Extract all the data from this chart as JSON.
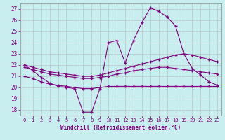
{
  "xlabel": "Windchill (Refroidissement éolien,°C)",
  "background_color": "#c8eef0",
  "grid_color": "#b0b0b0",
  "line_color": "#800080",
  "ylim": [
    17.5,
    27.5
  ],
  "xlim": [
    -0.5,
    23.5
  ],
  "yticks": [
    18,
    19,
    20,
    21,
    22,
    23,
    24,
    25,
    26,
    27
  ],
  "xticks": [
    0,
    1,
    2,
    3,
    4,
    5,
    6,
    7,
    8,
    9,
    10,
    11,
    12,
    13,
    14,
    15,
    16,
    17,
    18,
    19,
    20,
    21,
    22,
    23
  ],
  "hours": [
    0,
    1,
    2,
    3,
    4,
    5,
    6,
    7,
    8,
    9,
    10,
    11,
    12,
    13,
    14,
    15,
    16,
    17,
    18,
    19,
    20,
    21,
    22,
    23
  ],
  "line1": [
    22.0,
    21.5,
    20.9,
    20.4,
    20.1,
    20.0,
    19.9,
    17.8,
    17.8,
    19.9,
    24.0,
    24.2,
    22.2,
    24.2,
    25.8,
    27.1,
    26.8,
    26.3,
    25.5,
    23.0,
    21.7,
    21.1,
    20.5,
    20.2
  ],
  "line2": [
    21.0,
    20.8,
    20.5,
    20.3,
    20.2,
    20.1,
    20.0,
    19.9,
    19.9,
    20.0,
    20.1,
    20.1,
    20.1,
    20.1,
    20.1,
    20.1,
    20.1,
    20.1,
    20.1,
    20.1,
    20.1,
    20.1,
    20.1,
    20.1
  ],
  "line3": [
    22.0,
    21.8,
    21.6,
    21.4,
    21.3,
    21.2,
    21.1,
    21.0,
    21.0,
    21.1,
    21.3,
    21.5,
    21.7,
    21.9,
    22.1,
    22.3,
    22.5,
    22.7,
    22.9,
    23.0,
    22.9,
    22.7,
    22.5,
    22.3
  ],
  "line4": [
    21.8,
    21.6,
    21.4,
    21.2,
    21.1,
    21.0,
    20.9,
    20.8,
    20.8,
    20.9,
    21.0,
    21.2,
    21.3,
    21.5,
    21.6,
    21.7,
    21.8,
    21.8,
    21.7,
    21.6,
    21.5,
    21.4,
    21.3,
    21.2
  ]
}
